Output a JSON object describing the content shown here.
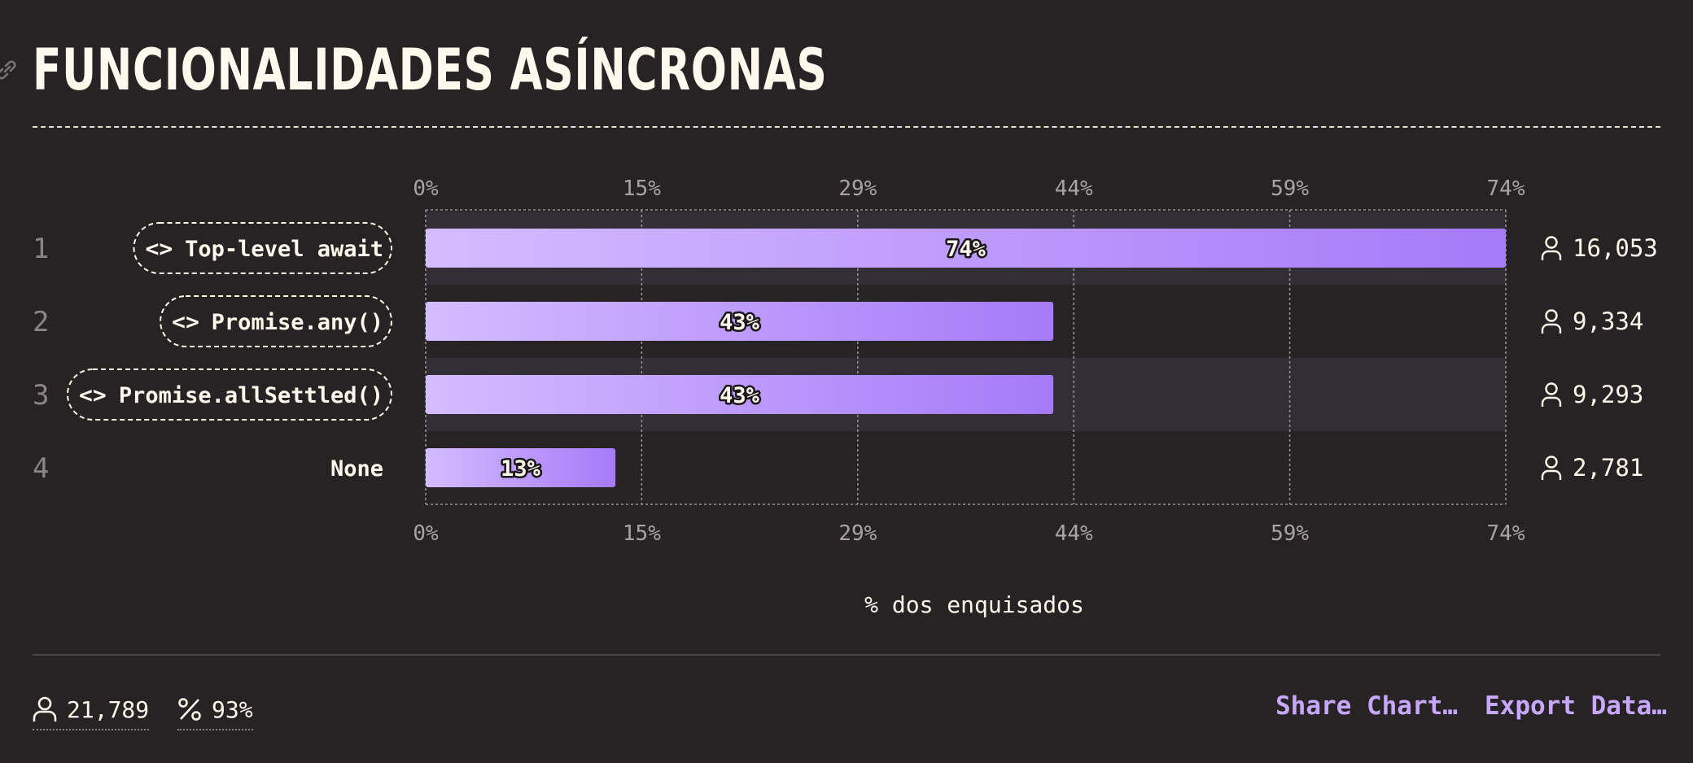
{
  "title": "FUNCIONALIDADES ASÍNCRONAS",
  "chart_data": {
    "type": "bar",
    "orientation": "horizontal",
    "ranks": [
      "1",
      "2",
      "3",
      "4"
    ],
    "categories": [
      "Top-level await",
      "Promise.any()",
      "Promise.allSettled()",
      "None"
    ],
    "category_is_code": [
      true,
      true,
      true,
      false
    ],
    "values": [
      74,
      43,
      43,
      13
    ],
    "value_labels": [
      "74%",
      "43%",
      "43%",
      "13%"
    ],
    "counts": [
      "16,053",
      "9,334",
      "9,293",
      "2,781"
    ],
    "xticks": [
      "0%",
      "15%",
      "29%",
      "44%",
      "59%",
      "74%"
    ],
    "xlim": [
      0,
      74
    ],
    "xlabel": "% dos enquisados",
    "grid": true,
    "colors": {
      "bar_start": "#d4bcff",
      "bar_end": "#a67af8",
      "stripe": "#332d36"
    }
  },
  "footer": {
    "respondents": "21,789",
    "percent": "93%",
    "share_label": "Share Chart…",
    "export_label": "Export Data…"
  }
}
